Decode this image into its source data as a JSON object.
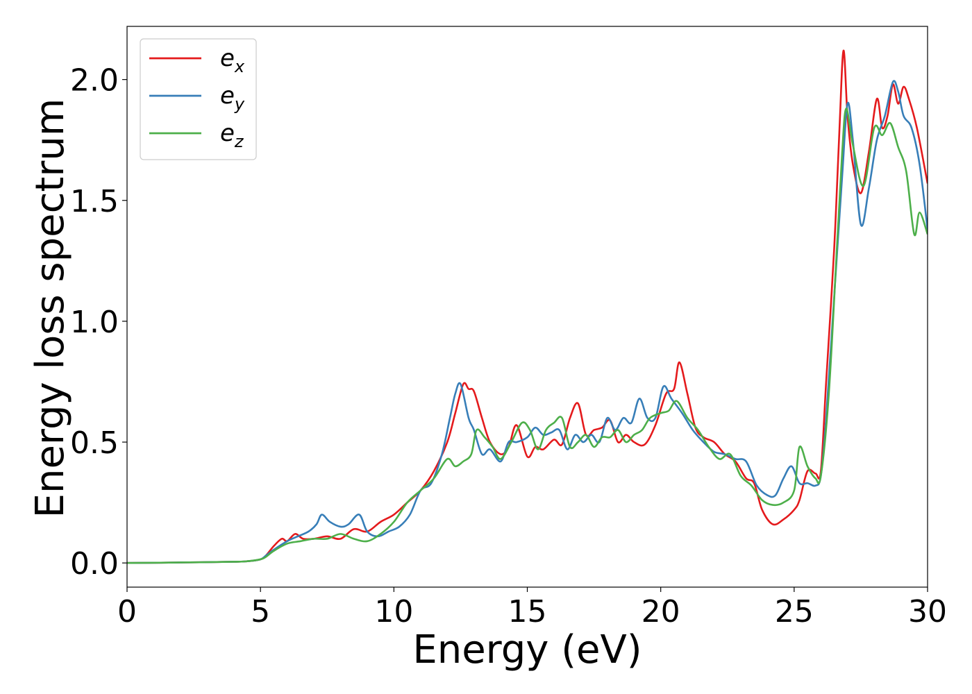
{
  "chart_data": {
    "type": "line",
    "title": "",
    "xlabel": "Energy (eV)",
    "ylabel": "Energy loss spectrum",
    "xlim": [
      0,
      30
    ],
    "ylim": [
      -0.1,
      2.22
    ],
    "xticks": [
      0,
      5,
      10,
      15,
      20,
      25,
      30
    ],
    "xtick_labels": [
      "0",
      "5",
      "10",
      "15",
      "20",
      "25",
      "30"
    ],
    "yticks": [
      0.0,
      0.5,
      1.0,
      1.5,
      2.0
    ],
    "ytick_labels": [
      "0.0",
      "0.5",
      "1.0",
      "1.5",
      "2.0"
    ],
    "grid": false,
    "legend_position": "top-left",
    "series": [
      {
        "name": "e_x",
        "label_base": "e",
        "label_sub": "x",
        "color": "#e41a1c",
        "x": [
          0,
          2,
          4,
          4.5,
          5,
          5.2,
          5.5,
          5.8,
          6.0,
          6.3,
          6.6,
          7.0,
          7.5,
          8.0,
          8.5,
          9.0,
          9.5,
          10.0,
          10.5,
          11.0,
          11.5,
          12.0,
          12.3,
          12.6,
          12.8,
          13.0,
          13.3,
          13.6,
          14.0,
          14.3,
          14.6,
          15.0,
          15.3,
          15.6,
          16.0,
          16.3,
          16.6,
          16.9,
          17.2,
          17.5,
          17.8,
          18.1,
          18.4,
          18.7,
          19.0,
          19.4,
          19.8,
          20.2,
          20.5,
          20.7,
          21.0,
          21.3,
          21.6,
          22.0,
          22.4,
          22.8,
          23.2,
          23.5,
          23.8,
          24.2,
          24.6,
          25.0,
          25.2,
          25.5,
          25.8,
          26.0,
          26.2,
          26.5,
          26.7,
          26.85,
          27.0,
          27.2,
          27.5,
          27.8,
          28.1,
          28.3,
          28.5,
          28.7,
          28.9,
          29.1,
          29.3,
          29.6,
          30.0
        ],
        "y": [
          0.0,
          0.002,
          0.005,
          0.007,
          0.015,
          0.03,
          0.07,
          0.1,
          0.09,
          0.12,
          0.1,
          0.1,
          0.11,
          0.1,
          0.14,
          0.13,
          0.17,
          0.2,
          0.25,
          0.3,
          0.38,
          0.5,
          0.62,
          0.74,
          0.72,
          0.71,
          0.6,
          0.5,
          0.45,
          0.48,
          0.57,
          0.44,
          0.48,
          0.47,
          0.51,
          0.49,
          0.6,
          0.66,
          0.53,
          0.55,
          0.56,
          0.59,
          0.5,
          0.53,
          0.5,
          0.49,
          0.57,
          0.7,
          0.72,
          0.83,
          0.7,
          0.56,
          0.52,
          0.5,
          0.45,
          0.42,
          0.35,
          0.33,
          0.22,
          0.16,
          0.18,
          0.22,
          0.26,
          0.38,
          0.37,
          0.38,
          0.75,
          1.3,
          1.8,
          2.12,
          1.85,
          1.65,
          1.53,
          1.7,
          1.92,
          1.8,
          1.85,
          1.98,
          1.9,
          1.97,
          1.92,
          1.8,
          1.57
        ]
      },
      {
        "name": "e_y",
        "label_base": "e",
        "label_sub": "y",
        "color": "#377eb8",
        "x": [
          0,
          2,
          4,
          4.5,
          5,
          5.2,
          5.5,
          6.0,
          6.4,
          6.8,
          7.1,
          7.3,
          7.6,
          8.0,
          8.3,
          8.7,
          9.0,
          9.4,
          9.8,
          10.2,
          10.6,
          11.0,
          11.4,
          11.8,
          12.1,
          12.3,
          12.5,
          12.8,
          13.0,
          13.3,
          13.6,
          14.0,
          14.3,
          14.6,
          15.0,
          15.3,
          15.6,
          15.9,
          16.2,
          16.5,
          16.8,
          17.1,
          17.4,
          17.7,
          18.0,
          18.3,
          18.6,
          18.9,
          19.2,
          19.5,
          19.8,
          20.1,
          20.4,
          20.8,
          21.2,
          21.6,
          22.0,
          22.4,
          22.8,
          23.2,
          23.6,
          24.0,
          24.3,
          24.6,
          24.9,
          25.2,
          25.5,
          25.8,
          26.0,
          26.2,
          26.5,
          26.8,
          27.0,
          27.2,
          27.5,
          27.8,
          28.1,
          28.4,
          28.7,
          28.9,
          29.1,
          29.4,
          29.7,
          30.0
        ],
        "y": [
          0.0,
          0.002,
          0.005,
          0.007,
          0.015,
          0.03,
          0.055,
          0.09,
          0.11,
          0.13,
          0.16,
          0.2,
          0.17,
          0.15,
          0.16,
          0.2,
          0.13,
          0.11,
          0.13,
          0.15,
          0.2,
          0.3,
          0.33,
          0.45,
          0.6,
          0.7,
          0.74,
          0.6,
          0.55,
          0.45,
          0.47,
          0.42,
          0.5,
          0.5,
          0.52,
          0.56,
          0.53,
          0.54,
          0.55,
          0.47,
          0.53,
          0.5,
          0.53,
          0.5,
          0.6,
          0.55,
          0.6,
          0.58,
          0.68,
          0.6,
          0.6,
          0.73,
          0.68,
          0.62,
          0.55,
          0.5,
          0.46,
          0.45,
          0.43,
          0.42,
          0.32,
          0.28,
          0.28,
          0.35,
          0.4,
          0.33,
          0.33,
          0.32,
          0.36,
          0.6,
          1.1,
          1.6,
          1.9,
          1.75,
          1.4,
          1.55,
          1.75,
          1.85,
          1.99,
          1.95,
          1.85,
          1.8,
          1.65,
          1.38
        ]
      },
      {
        "name": "e_z",
        "label_base": "e",
        "label_sub": "z",
        "color": "#4daf4a",
        "x": [
          0,
          2,
          4,
          4.5,
          5,
          5.2,
          5.5,
          6.0,
          6.5,
          7.0,
          7.5,
          8.0,
          8.5,
          9.0,
          9.5,
          10.0,
          10.5,
          11.0,
          11.5,
          12.0,
          12.3,
          12.6,
          12.9,
          13.1,
          13.4,
          13.7,
          14.0,
          14.4,
          14.8,
          15.1,
          15.4,
          15.7,
          16.0,
          16.3,
          16.6,
          16.9,
          17.2,
          17.5,
          17.8,
          18.1,
          18.4,
          18.7,
          19.0,
          19.3,
          19.6,
          20.0,
          20.3,
          20.6,
          21.0,
          21.4,
          21.8,
          22.2,
          22.6,
          23.0,
          23.4,
          23.8,
          24.2,
          24.6,
          25.0,
          25.2,
          25.5,
          25.8,
          26.0,
          26.3,
          26.6,
          26.8,
          26.95,
          27.2,
          27.6,
          28.0,
          28.3,
          28.6,
          28.9,
          29.2,
          29.5,
          29.7,
          30.0
        ],
        "y": [
          0.0,
          0.002,
          0.005,
          0.007,
          0.015,
          0.025,
          0.05,
          0.08,
          0.09,
          0.1,
          0.1,
          0.12,
          0.1,
          0.09,
          0.12,
          0.17,
          0.25,
          0.3,
          0.35,
          0.43,
          0.4,
          0.42,
          0.45,
          0.55,
          0.52,
          0.48,
          0.43,
          0.5,
          0.58,
          0.55,
          0.47,
          0.55,
          0.58,
          0.6,
          0.48,
          0.5,
          0.53,
          0.48,
          0.52,
          0.52,
          0.55,
          0.5,
          0.53,
          0.55,
          0.6,
          0.62,
          0.63,
          0.67,
          0.6,
          0.55,
          0.48,
          0.43,
          0.45,
          0.36,
          0.32,
          0.26,
          0.24,
          0.25,
          0.3,
          0.48,
          0.4,
          0.35,
          0.36,
          0.7,
          1.3,
          1.7,
          1.88,
          1.73,
          1.56,
          1.8,
          1.77,
          1.82,
          1.72,
          1.62,
          1.36,
          1.45,
          1.36
        ]
      }
    ]
  }
}
